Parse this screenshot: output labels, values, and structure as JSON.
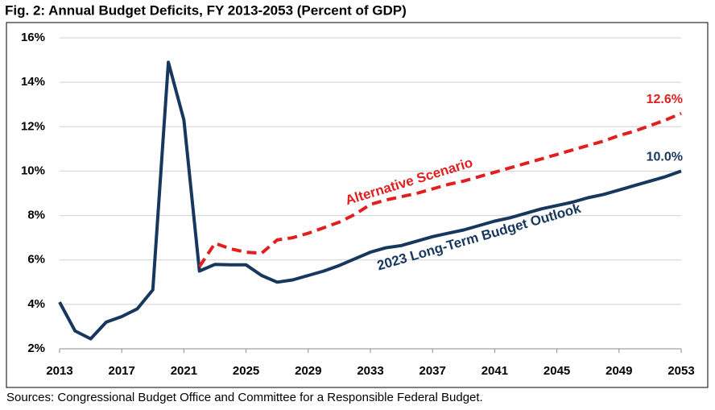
{
  "chart_data": {
    "type": "line",
    "title": "Fig. 2: Annual Budget Deficits, FY 2013-2053 (Percent of GDP)",
    "source": "Sources: Congressional Budget Office and Committee for a Responsible Federal Budget.",
    "x": [
      2013,
      2014,
      2015,
      2016,
      2017,
      2018,
      2019,
      2020,
      2021,
      2022,
      2023,
      2024,
      2025,
      2026,
      2027,
      2028,
      2029,
      2030,
      2031,
      2032,
      2033,
      2034,
      2035,
      2036,
      2037,
      2038,
      2039,
      2040,
      2041,
      2042,
      2043,
      2044,
      2045,
      2046,
      2047,
      2048,
      2049,
      2050,
      2051,
      2052,
      2053
    ],
    "xlim": [
      2013,
      2053
    ],
    "xticks": [
      2013,
      2017,
      2021,
      2025,
      2029,
      2033,
      2037,
      2041,
      2045,
      2049,
      2053
    ],
    "ylim": [
      2,
      16
    ],
    "yticks": [
      {
        "value": 2,
        "label": "2%"
      },
      {
        "value": 4,
        "label": "4%"
      },
      {
        "value": 6,
        "label": "6%"
      },
      {
        "value": 8,
        "label": "8%"
      },
      {
        "value": 10,
        "label": "10%"
      },
      {
        "value": 12,
        "label": "12%"
      },
      {
        "value": 14,
        "label": "14%"
      },
      {
        "value": 16,
        "label": "16%"
      }
    ],
    "grid": true,
    "series": [
      {
        "name": "2023 Long-Term Budget Outlook",
        "color": "#17375e",
        "dashed": false,
        "values": [
          4.1,
          2.8,
          2.45,
          3.2,
          3.45,
          3.8,
          4.65,
          14.9,
          12.3,
          5.5,
          5.8,
          5.78,
          5.78,
          5.3,
          5.0,
          5.1,
          5.3,
          5.5,
          5.75,
          6.05,
          6.35,
          6.55,
          6.65,
          6.85,
          7.05,
          7.2,
          7.35,
          7.55,
          7.75,
          7.9,
          8.1,
          8.3,
          8.45,
          8.6,
          8.8,
          8.95,
          9.15,
          9.35,
          9.55,
          9.75,
          10.0
        ],
        "value_labels": [
          null,
          null,
          null,
          null,
          null,
          null,
          null,
          null,
          null,
          null,
          null,
          null,
          null,
          null,
          null,
          null,
          null,
          null,
          null,
          null,
          null,
          null,
          null,
          null,
          null,
          null,
          null,
          null,
          null,
          null,
          null,
          null,
          null,
          null,
          null,
          null,
          null,
          null,
          null,
          null,
          "10.0%"
        ]
      },
      {
        "name": "Alternative Scenario",
        "color": "#e02020",
        "dashed": true,
        "values": [
          null,
          null,
          null,
          null,
          null,
          null,
          null,
          null,
          null,
          5.7,
          6.75,
          6.5,
          6.35,
          6.3,
          6.9,
          7.0,
          7.2,
          7.45,
          7.7,
          8.05,
          8.5,
          8.7,
          8.85,
          9.0,
          9.2,
          9.4,
          9.55,
          9.75,
          9.95,
          10.15,
          10.35,
          10.55,
          10.75,
          10.95,
          11.15,
          11.35,
          11.6,
          11.8,
          12.05,
          12.3,
          12.6
        ],
        "value_labels": [
          null,
          null,
          null,
          null,
          null,
          null,
          null,
          null,
          null,
          null,
          null,
          null,
          null,
          null,
          null,
          null,
          null,
          null,
          null,
          null,
          null,
          null,
          null,
          null,
          null,
          null,
          null,
          null,
          null,
          null,
          null,
          null,
          null,
          null,
          null,
          null,
          null,
          null,
          null,
          null,
          "12.6%"
        ]
      }
    ]
  }
}
